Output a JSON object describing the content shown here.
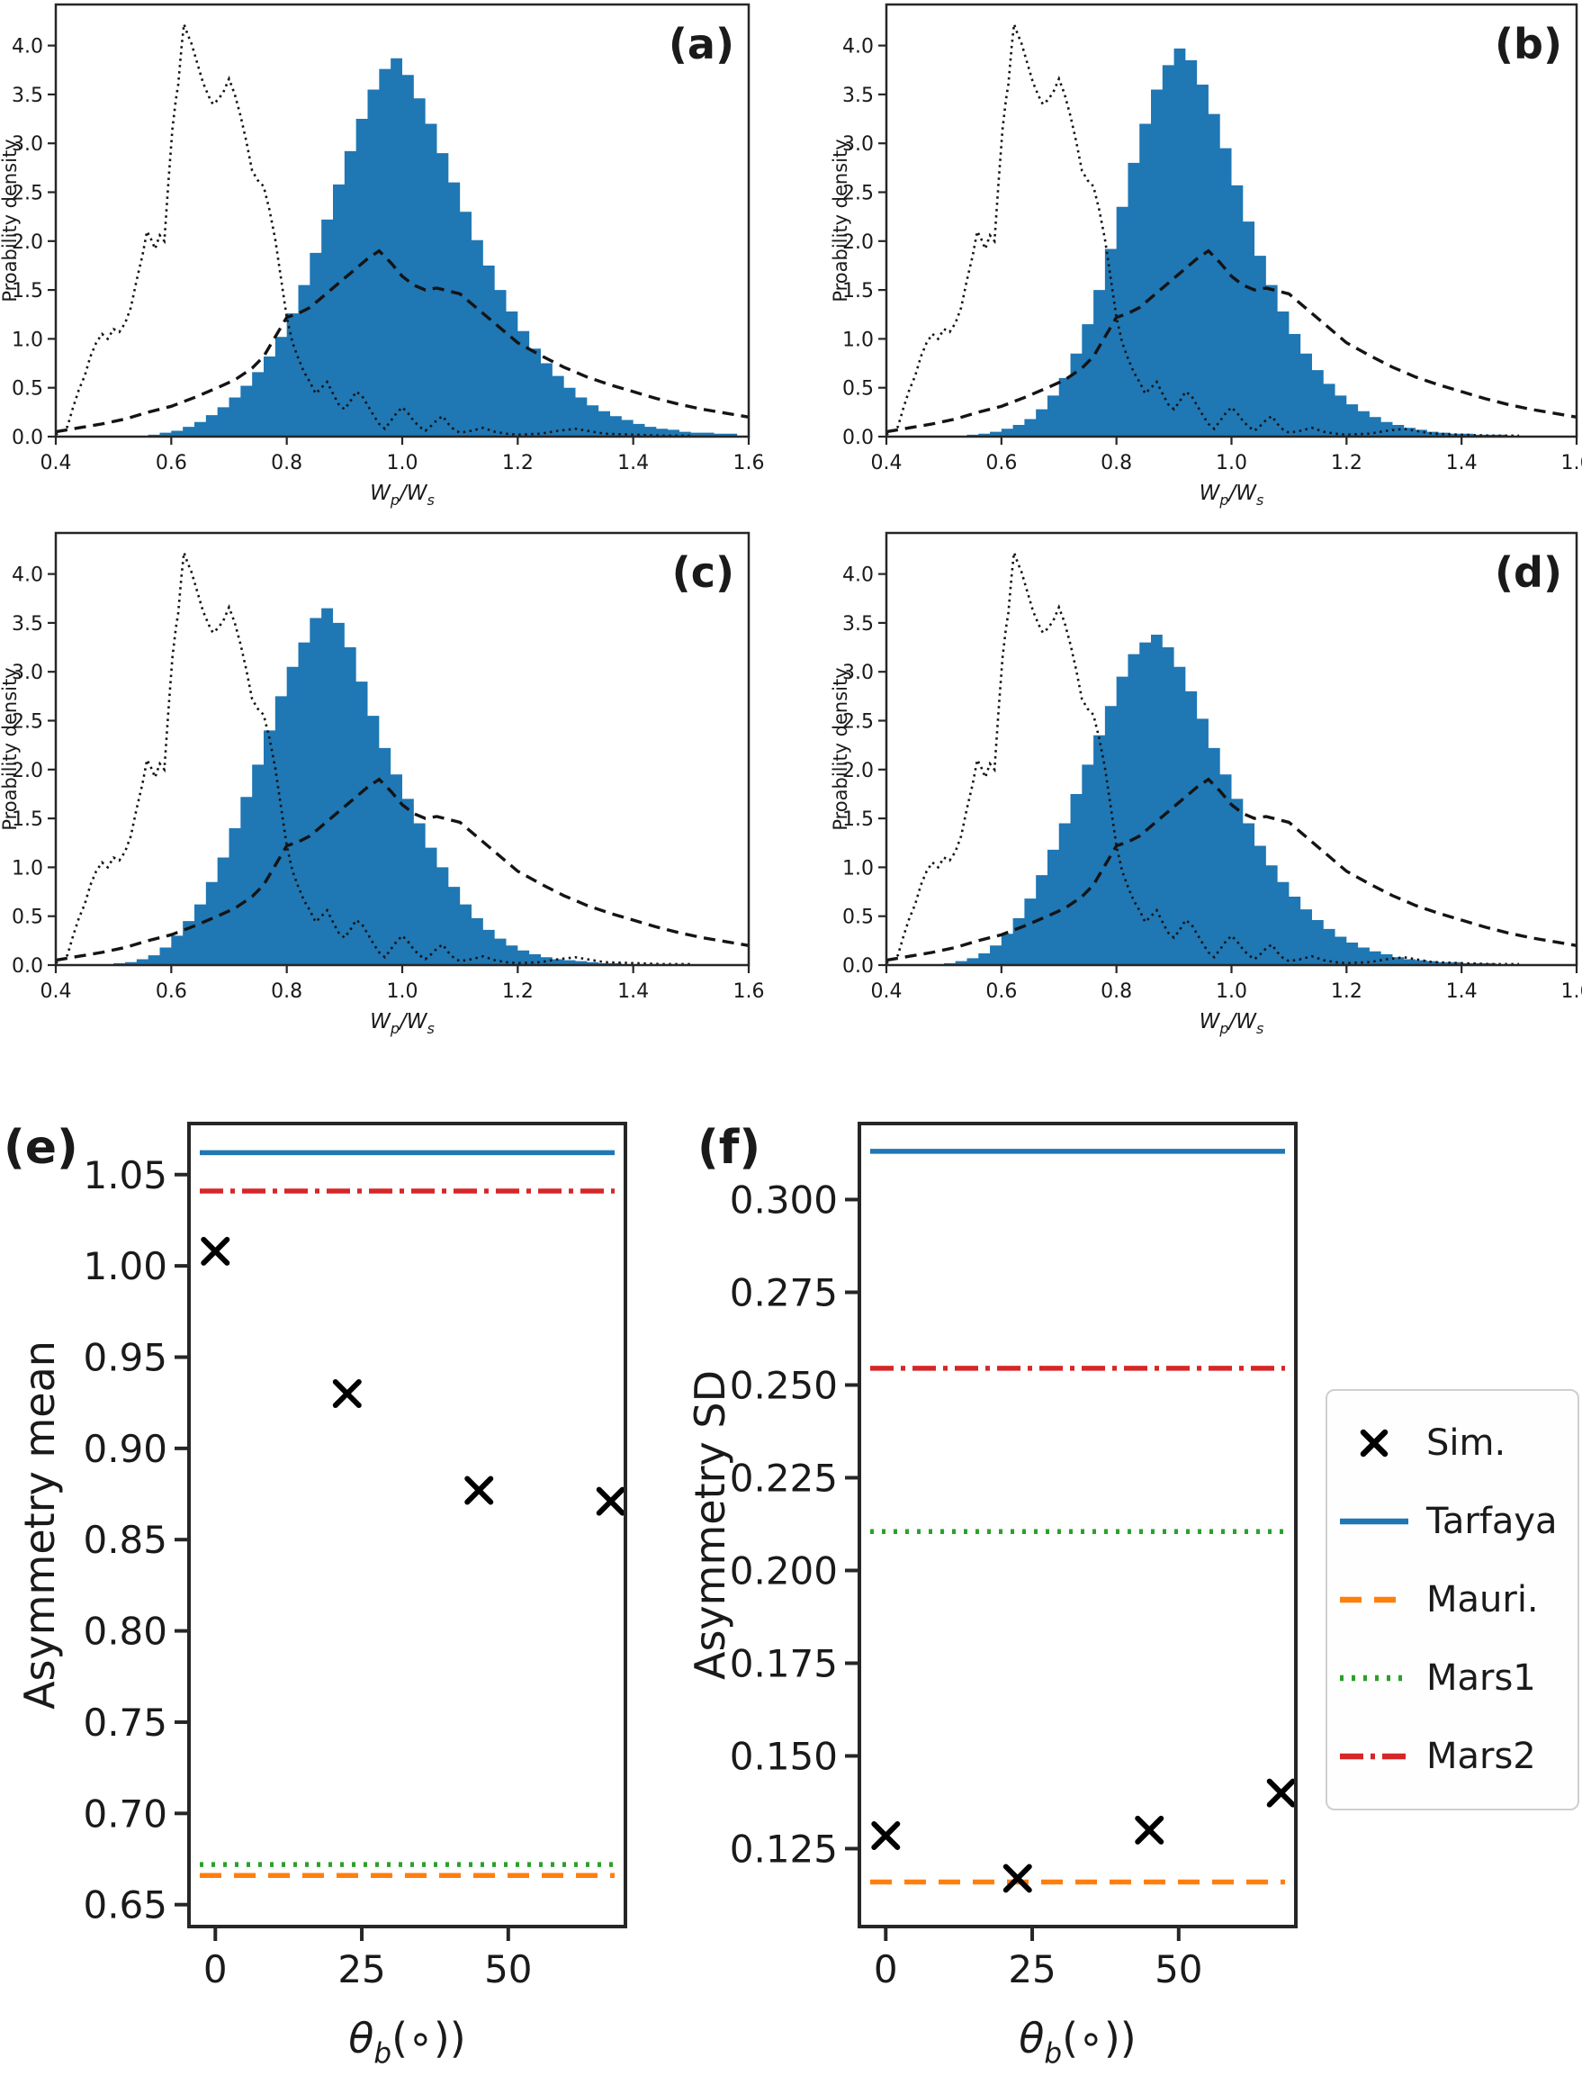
{
  "figure": {
    "background": "#ffffff",
    "spine_color": "#262626",
    "text_color": "#1a1a1a"
  },
  "chart_data": {
    "histograms": {
      "type": "histogram+lines",
      "ylabel": "Proability density",
      "xlabel_parts": {
        "w1": "W",
        "sub1": "p",
        "mid": "/W",
        "sub2": "s"
      },
      "xlim": [
        0.4,
        1.6
      ],
      "ylim": [
        0,
        4.42
      ],
      "xticks": [
        0.4,
        0.6,
        0.8,
        1.0,
        1.2,
        1.4,
        1.6
      ],
      "yticks": [
        0.0,
        0.5,
        1.0,
        1.5,
        2.0,
        2.5,
        3.0,
        3.5,
        4.0
      ],
      "x_decimals": 1,
      "y_decimals": 1,
      "bar_color": "#1f77b4",
      "curve_color": "#141414",
      "grid": false,
      "reference_curves": {
        "dotted": [
          [
            0.4,
            0.02
          ],
          [
            0.42,
            0.1
          ],
          [
            0.43,
            0.3
          ],
          [
            0.44,
            0.48
          ],
          [
            0.45,
            0.62
          ],
          [
            0.46,
            0.82
          ],
          [
            0.47,
            0.96
          ],
          [
            0.48,
            1.05
          ],
          [
            0.49,
            1.0
          ],
          [
            0.5,
            1.1
          ],
          [
            0.51,
            1.07
          ],
          [
            0.52,
            1.16
          ],
          [
            0.53,
            1.32
          ],
          [
            0.54,
            1.6
          ],
          [
            0.55,
            1.85
          ],
          [
            0.558,
            2.1
          ],
          [
            0.565,
            2.02
          ],
          [
            0.572,
            1.92
          ],
          [
            0.58,
            2.06
          ],
          [
            0.588,
            2.0
          ],
          [
            0.595,
            2.6
          ],
          [
            0.602,
            3.15
          ],
          [
            0.608,
            3.45
          ],
          [
            0.612,
            3.6
          ],
          [
            0.618,
            4.0
          ],
          [
            0.622,
            4.22
          ],
          [
            0.628,
            4.12
          ],
          [
            0.635,
            4.02
          ],
          [
            0.645,
            3.82
          ],
          [
            0.655,
            3.62
          ],
          [
            0.665,
            3.48
          ],
          [
            0.672,
            3.4
          ],
          [
            0.68,
            3.44
          ],
          [
            0.69,
            3.52
          ],
          [
            0.7,
            3.66
          ],
          [
            0.71,
            3.5
          ],
          [
            0.72,
            3.28
          ],
          [
            0.73,
            3.02
          ],
          [
            0.74,
            2.72
          ],
          [
            0.75,
            2.62
          ],
          [
            0.76,
            2.56
          ],
          [
            0.77,
            2.32
          ],
          [
            0.78,
            2.02
          ],
          [
            0.79,
            1.62
          ],
          [
            0.8,
            1.22
          ],
          [
            0.81,
            0.96
          ],
          [
            0.82,
            0.8
          ],
          [
            0.83,
            0.66
          ],
          [
            0.84,
            0.56
          ],
          [
            0.85,
            0.44
          ],
          [
            0.86,
            0.5
          ],
          [
            0.87,
            0.56
          ],
          [
            0.88,
            0.44
          ],
          [
            0.89,
            0.33
          ],
          [
            0.9,
            0.28
          ],
          [
            0.91,
            0.36
          ],
          [
            0.92,
            0.46
          ],
          [
            0.93,
            0.42
          ],
          [
            0.94,
            0.32
          ],
          [
            0.95,
            0.22
          ],
          [
            0.96,
            0.13
          ],
          [
            0.97,
            0.08
          ],
          [
            0.98,
            0.16
          ],
          [
            0.99,
            0.24
          ],
          [
            1.0,
            0.3
          ],
          [
            1.01,
            0.24
          ],
          [
            1.02,
            0.16
          ],
          [
            1.03,
            0.1
          ],
          [
            1.04,
            0.06
          ],
          [
            1.05,
            0.11
          ],
          [
            1.06,
            0.17
          ],
          [
            1.07,
            0.21
          ],
          [
            1.08,
            0.13
          ],
          [
            1.09,
            0.07
          ],
          [
            1.1,
            0.04
          ],
          [
            1.12,
            0.06
          ],
          [
            1.14,
            0.09
          ],
          [
            1.16,
            0.05
          ],
          [
            1.18,
            0.03
          ],
          [
            1.2,
            0.02
          ],
          [
            1.24,
            0.03
          ],
          [
            1.27,
            0.06
          ],
          [
            1.3,
            0.08
          ],
          [
            1.32,
            0.06
          ],
          [
            1.35,
            0.03
          ],
          [
            1.4,
            0.02
          ],
          [
            1.45,
            0.01
          ],
          [
            1.5,
            0.01
          ]
        ],
        "dashed": [
          [
            0.4,
            0.05
          ],
          [
            0.44,
            0.09
          ],
          [
            0.48,
            0.13
          ],
          [
            0.52,
            0.18
          ],
          [
            0.56,
            0.25
          ],
          [
            0.6,
            0.31
          ],
          [
            0.64,
            0.4
          ],
          [
            0.68,
            0.5
          ],
          [
            0.71,
            0.58
          ],
          [
            0.74,
            0.7
          ],
          [
            0.76,
            0.82
          ],
          [
            0.78,
            1.02
          ],
          [
            0.8,
            1.22
          ],
          [
            0.82,
            1.26
          ],
          [
            0.84,
            1.32
          ],
          [
            0.86,
            1.42
          ],
          [
            0.88,
            1.52
          ],
          [
            0.9,
            1.62
          ],
          [
            0.92,
            1.72
          ],
          [
            0.94,
            1.82
          ],
          [
            0.96,
            1.9
          ],
          [
            0.98,
            1.78
          ],
          [
            1.0,
            1.64
          ],
          [
            1.02,
            1.55
          ],
          [
            1.04,
            1.5
          ],
          [
            1.06,
            1.52
          ],
          [
            1.08,
            1.49
          ],
          [
            1.1,
            1.46
          ],
          [
            1.12,
            1.36
          ],
          [
            1.14,
            1.26
          ],
          [
            1.16,
            1.16
          ],
          [
            1.18,
            1.06
          ],
          [
            1.2,
            0.96
          ],
          [
            1.24,
            0.83
          ],
          [
            1.28,
            0.71
          ],
          [
            1.32,
            0.61
          ],
          [
            1.36,
            0.53
          ],
          [
            1.4,
            0.46
          ],
          [
            1.44,
            0.39
          ],
          [
            1.48,
            0.33
          ],
          [
            1.52,
            0.28
          ],
          [
            1.56,
            0.24
          ],
          [
            1.6,
            0.2
          ]
        ]
      },
      "panels": [
        {
          "label": "(a)",
          "bin_start": 0.56,
          "bin_width": 0.02,
          "bin_heights": [
            0.02,
            0.04,
            0.06,
            0.1,
            0.15,
            0.22,
            0.3,
            0.4,
            0.52,
            0.66,
            0.82,
            1.02,
            1.26,
            1.55,
            1.88,
            2.22,
            2.58,
            2.92,
            3.25,
            3.55,
            3.76,
            3.87,
            3.7,
            3.46,
            3.2,
            2.9,
            2.6,
            2.3,
            2.01,
            1.75,
            1.5,
            1.28,
            1.08,
            0.9,
            0.75,
            0.62,
            0.5,
            0.4,
            0.32,
            0.26,
            0.21,
            0.17,
            0.13,
            0.1,
            0.08,
            0.07,
            0.05,
            0.04,
            0.04,
            0.03,
            0.03
          ]
        },
        {
          "label": "(b)",
          "bin_start": 0.54,
          "bin_width": 0.02,
          "bin_heights": [
            0.02,
            0.03,
            0.05,
            0.08,
            0.12,
            0.18,
            0.28,
            0.42,
            0.6,
            0.85,
            1.15,
            1.5,
            1.92,
            2.35,
            2.8,
            3.2,
            3.55,
            3.8,
            3.97,
            3.85,
            3.6,
            3.3,
            2.95,
            2.57,
            2.2,
            1.85,
            1.55,
            1.28,
            1.05,
            0.85,
            0.68,
            0.54,
            0.42,
            0.33,
            0.26,
            0.2,
            0.15,
            0.12,
            0.09,
            0.07,
            0.05,
            0.04,
            0.03,
            0.03,
            0.02,
            0.02,
            0.02
          ]
        },
        {
          "label": "(c)",
          "bin_start": 0.5,
          "bin_width": 0.02,
          "bin_heights": [
            0.02,
            0.03,
            0.06,
            0.1,
            0.18,
            0.3,
            0.45,
            0.62,
            0.85,
            1.1,
            1.4,
            1.72,
            2.05,
            2.4,
            2.75,
            3.05,
            3.3,
            3.55,
            3.65,
            3.5,
            3.25,
            2.9,
            2.55,
            2.22,
            1.95,
            1.7,
            1.45,
            1.2,
            1.0,
            0.8,
            0.62,
            0.48,
            0.36,
            0.27,
            0.2,
            0.15,
            0.11,
            0.08,
            0.06,
            0.05,
            0.04,
            0.03,
            0.02,
            0.02
          ]
        },
        {
          "label": "(d)",
          "bin_start": 0.5,
          "bin_width": 0.02,
          "bin_heights": [
            0.02,
            0.04,
            0.07,
            0.12,
            0.2,
            0.32,
            0.48,
            0.68,
            0.92,
            1.18,
            1.45,
            1.75,
            2.05,
            2.35,
            2.65,
            2.95,
            3.18,
            3.3,
            3.38,
            3.25,
            3.05,
            2.8,
            2.52,
            2.22,
            1.95,
            1.7,
            1.45,
            1.22,
            1.02,
            0.85,
            0.7,
            0.57,
            0.46,
            0.37,
            0.29,
            0.23,
            0.18,
            0.14,
            0.11,
            0.08,
            0.06,
            0.05,
            0.04,
            0.03,
            0.03,
            0.02,
            0.02,
            0.02
          ]
        }
      ]
    },
    "scatter": {
      "type": "scatter",
      "xlabel_parts": {
        "theta": "θ",
        "sub": "b",
        "rest": "(∘))"
      },
      "xlim": [
        -4.5,
        70
      ],
      "xticks": [
        0,
        25,
        50
      ],
      "x_decimals": 0,
      "marker_color": "#000000",
      "legend_position": "right of panel (f)",
      "panels": [
        {
          "label": "(e)",
          "ylabel": "Asymmetry mean",
          "ylim": [
            0.638,
            1.078
          ],
          "yticks": [
            0.65,
            0.7,
            0.75,
            0.8,
            0.85,
            0.9,
            0.95,
            1.0,
            1.05
          ],
          "y_decimals": 2,
          "sim_points": [
            [
              0,
              1.008
            ],
            [
              22.5,
              0.93
            ],
            [
              45,
              0.877
            ],
            [
              67.5,
              0.871
            ]
          ],
          "hlines": [
            {
              "name": "Tarfaya",
              "value": 1.062
            },
            {
              "name": "Mars2",
              "value": 1.041
            },
            {
              "name": "Mars1",
              "value": 0.672
            },
            {
              "name": "Mauri.",
              "value": 0.666
            }
          ]
        },
        {
          "label": "(f)",
          "ylabel": "Asymmetry SD",
          "ylim": [
            0.104,
            0.3205
          ],
          "yticks": [
            0.125,
            0.15,
            0.175,
            0.2,
            0.225,
            0.25,
            0.275,
            0.3
          ],
          "y_decimals": 3,
          "sim_points": [
            [
              0,
              0.1285
            ],
            [
              22.5,
              0.117
            ],
            [
              45,
              0.13
            ],
            [
              67.5,
              0.14
            ]
          ],
          "hlines": [
            {
              "name": "Tarfaya",
              "value": 0.313
            },
            {
              "name": "Mars2",
              "value": 0.2545
            },
            {
              "name": "Mars1",
              "value": 0.2105
            },
            {
              "name": "Mauri.",
              "value": 0.116
            }
          ]
        }
      ]
    }
  },
  "legend": {
    "items": [
      {
        "label": "Sim.",
        "style": "x-marker",
        "color": "#000000"
      },
      {
        "label": "Tarfaya",
        "style": "solid",
        "color": "#1f77b4"
      },
      {
        "label": "Mauri.",
        "style": "dashed",
        "color": "#ff7f0e"
      },
      {
        "label": "Mars1",
        "style": "dotted",
        "color": "#2ca02c"
      },
      {
        "label": "Mars2",
        "style": "dashdot",
        "color": "#d62728"
      }
    ]
  }
}
